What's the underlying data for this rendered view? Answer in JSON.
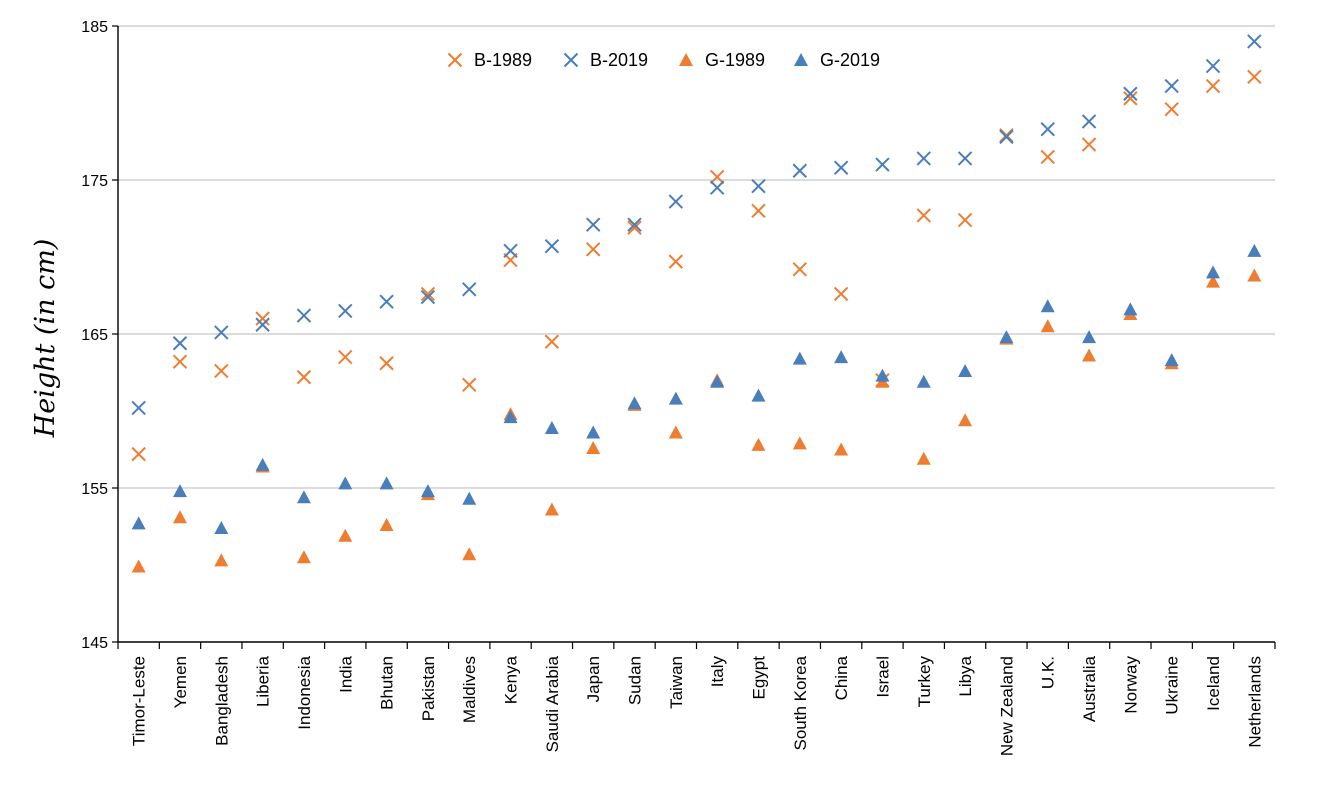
{
  "chart_data": {
    "type": "scatter",
    "title": "",
    "xlabel": "",
    "ylabel": "Height (in cm)",
    "ylim": [
      145,
      185
    ],
    "yticks": [
      145,
      155,
      165,
      175,
      185
    ],
    "grid": true,
    "legend_position": "top-center",
    "categories": [
      "Timor-Leste",
      "Yemen",
      "Bangladesh",
      "Liberia",
      "Indonesia",
      "India",
      "Bhutan",
      "Pakistan",
      "Maldives",
      "Kenya",
      "Saudi Arabia",
      "Japan",
      "Sudan",
      "Taiwan",
      "Italy",
      "Egypt",
      "South Korea",
      "China",
      "Israel",
      "Turkey",
      "Libya",
      "New Zealand",
      "U.K.",
      "Australia",
      "Norway",
      "Ukraine",
      "Iceland",
      "Netherlands"
    ],
    "series": [
      {
        "name": "B-1989",
        "marker": "x",
        "color": "#ED7D31",
        "values": [
          157.2,
          163.2,
          162.6,
          166.0,
          162.2,
          163.5,
          163.1,
          167.6,
          161.7,
          169.8,
          164.5,
          170.5,
          171.9,
          169.7,
          175.2,
          173.0,
          169.2,
          167.6,
          162.0,
          172.7,
          172.4,
          177.9,
          176.5,
          177.3,
          180.3,
          179.6,
          181.1,
          181.7
        ]
      },
      {
        "name": "B-2019",
        "marker": "x",
        "color": "#4A7EBB",
        "values": [
          160.2,
          164.4,
          165.1,
          165.6,
          166.2,
          166.5,
          167.1,
          167.4,
          167.9,
          170.4,
          170.7,
          172.1,
          172.1,
          173.6,
          174.5,
          174.6,
          175.6,
          175.8,
          176.0,
          176.4,
          176.4,
          177.8,
          178.3,
          178.8,
          180.6,
          181.1,
          182.4,
          184.0
        ]
      },
      {
        "name": "G-1989",
        "marker": "triangle",
        "color": "#ED7D31",
        "values": [
          149.9,
          153.1,
          150.3,
          156.4,
          150.5,
          151.9,
          152.6,
          154.6,
          150.7,
          159.8,
          153.6,
          157.6,
          160.4,
          158.6,
          162.0,
          157.8,
          157.9,
          157.5,
          161.9,
          156.9,
          159.4,
          164.7,
          165.5,
          163.6,
          166.3,
          163.1,
          168.4,
          168.8
        ]
      },
      {
        "name": "G-2019",
        "marker": "triangle",
        "color": "#4A7EBB",
        "values": [
          152.7,
          154.8,
          152.4,
          156.5,
          154.4,
          155.3,
          155.3,
          154.8,
          154.3,
          159.6,
          158.9,
          158.6,
          160.5,
          160.8,
          161.9,
          161.0,
          163.4,
          163.5,
          162.3,
          161.9,
          162.6,
          164.8,
          166.8,
          164.8,
          166.6,
          163.3,
          169.0,
          170.4
        ]
      }
    ]
  }
}
